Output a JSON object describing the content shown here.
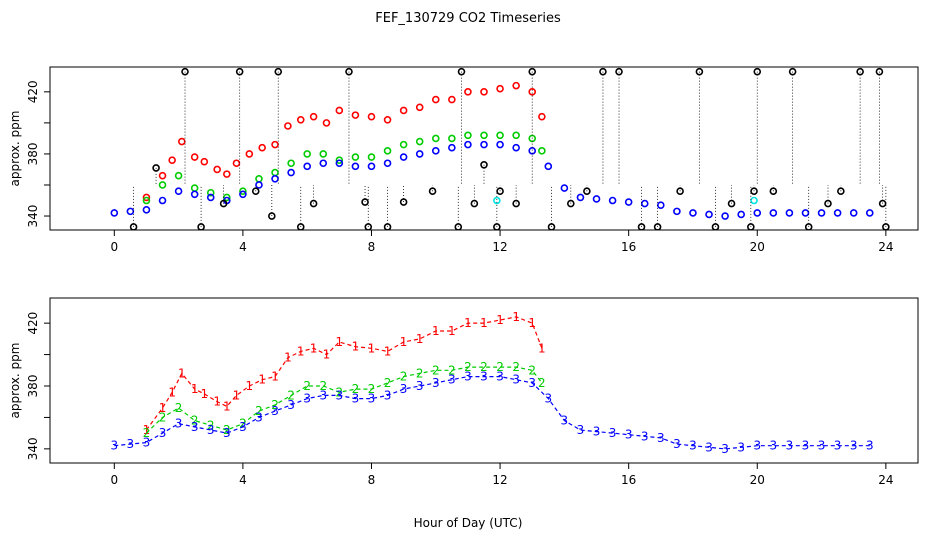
{
  "figure": {
    "title": "FEF_130729  CO2 Timeseries",
    "xlabel": "Hour of Day (UTC)"
  },
  "chart_data": [
    {
      "type": "scatter",
      "ylabel": "approx. ppm",
      "xlim": [
        -2,
        25
      ],
      "ylim": [
        331,
        436
      ],
      "x_ticks": [
        "0",
        "4",
        "8",
        "12",
        "16",
        "20",
        "24"
      ],
      "y_ticks": [
        "340",
        "380",
        "420"
      ],
      "series": [
        {
          "key": "red",
          "color": "#ff0000",
          "points": [
            [
              1.0,
              352
            ],
            [
              1.5,
              366
            ],
            [
              1.8,
              376
            ],
            [
              2.1,
              388
            ],
            [
              2.5,
              378
            ],
            [
              2.8,
              375
            ],
            [
              3.2,
              370
            ],
            [
              3.5,
              367
            ],
            [
              3.8,
              374
            ],
            [
              4.2,
              380
            ],
            [
              4.6,
              384
            ],
            [
              5.0,
              386
            ],
            [
              5.4,
              398
            ],
            [
              5.8,
              402
            ],
            [
              6.2,
              404
            ],
            [
              6.6,
              400
            ],
            [
              7.0,
              408
            ],
            [
              7.5,
              405
            ],
            [
              8.0,
              404
            ],
            [
              8.5,
              402
            ],
            [
              9.0,
              408
            ],
            [
              9.5,
              410
            ],
            [
              10.0,
              415
            ],
            [
              10.5,
              415
            ],
            [
              11.0,
              420
            ],
            [
              11.5,
              420
            ],
            [
              12.0,
              422
            ],
            [
              12.5,
              424
            ],
            [
              13.0,
              420
            ],
            [
              13.3,
              404
            ]
          ]
        },
        {
          "key": "green",
          "color": "#00cc00",
          "points": [
            [
              1.0,
              350
            ],
            [
              1.5,
              360
            ],
            [
              2.0,
              366
            ],
            [
              2.5,
              358
            ],
            [
              3.0,
              355
            ],
            [
              3.5,
              352
            ],
            [
              4.0,
              356
            ],
            [
              4.5,
              364
            ],
            [
              5.0,
              368
            ],
            [
              5.5,
              374
            ],
            [
              6.0,
              380
            ],
            [
              6.5,
              380
            ],
            [
              7.0,
              376
            ],
            [
              7.5,
              378
            ],
            [
              8.0,
              378
            ],
            [
              8.5,
              382
            ],
            [
              9.0,
              386
            ],
            [
              9.5,
              388
            ],
            [
              10.0,
              390
            ],
            [
              10.5,
              390
            ],
            [
              11.0,
              392
            ],
            [
              11.5,
              392
            ],
            [
              12.0,
              392
            ],
            [
              12.5,
              392
            ],
            [
              13.0,
              390
            ],
            [
              13.3,
              382
            ]
          ]
        },
        {
          "key": "blue",
          "color": "#0000ff",
          "points": [
            [
              0.0,
              342
            ],
            [
              0.5,
              343
            ],
            [
              1.0,
              344
            ],
            [
              1.5,
              350
            ],
            [
              2.0,
              356
            ],
            [
              2.5,
              354
            ],
            [
              3.0,
              352
            ],
            [
              3.5,
              350
            ],
            [
              4.0,
              354
            ],
            [
              4.5,
              360
            ],
            [
              5.0,
              364
            ],
            [
              5.5,
              368
            ],
            [
              6.0,
              372
            ],
            [
              6.5,
              374
            ],
            [
              7.0,
              374
            ],
            [
              7.5,
              372
            ],
            [
              8.0,
              372
            ],
            [
              8.5,
              374
            ],
            [
              9.0,
              378
            ],
            [
              9.5,
              380
            ],
            [
              10.0,
              382
            ],
            [
              10.5,
              384
            ],
            [
              11.0,
              386
            ],
            [
              11.5,
              386
            ],
            [
              12.0,
              386
            ],
            [
              12.5,
              384
            ],
            [
              13.0,
              382
            ],
            [
              13.5,
              372
            ],
            [
              14.0,
              358
            ],
            [
              14.5,
              352
            ],
            [
              15.0,
              351
            ],
            [
              15.5,
              350
            ],
            [
              16.0,
              349
            ],
            [
              16.5,
              348
            ],
            [
              17.0,
              347
            ],
            [
              17.5,
              343
            ],
            [
              18.0,
              342
            ],
            [
              18.5,
              341
            ],
            [
              19.0,
              340
            ],
            [
              19.5,
              341
            ],
            [
              20.0,
              342
            ],
            [
              20.5,
              342
            ],
            [
              21.0,
              342
            ],
            [
              21.5,
              342
            ],
            [
              22.0,
              342
            ],
            [
              22.5,
              342
            ],
            [
              23.0,
              342
            ],
            [
              23.5,
              342
            ]
          ]
        },
        {
          "key": "cyan",
          "color": "#00e5e5",
          "points": [
            [
              11.9,
              350
            ],
            [
              19.9,
              350
            ]
          ]
        },
        {
          "key": "black",
          "color": "#000000",
          "points": [
            [
              0.6,
              333
            ],
            [
              1.3,
              371
            ],
            [
              2.2,
              433
            ],
            [
              2.7,
              333
            ],
            [
              3.4,
              348
            ],
            [
              3.9,
              433
            ],
            [
              4.4,
              356
            ],
            [
              4.9,
              340
            ],
            [
              5.1,
              433
            ],
            [
              5.8,
              333
            ],
            [
              6.2,
              348
            ],
            [
              7.3,
              433
            ],
            [
              7.8,
              349
            ],
            [
              7.9,
              333
            ],
            [
              8.5,
              333
            ],
            [
              9.0,
              349
            ],
            [
              9.9,
              356
            ],
            [
              10.7,
              333
            ],
            [
              10.8,
              433
            ],
            [
              11.2,
              348
            ],
            [
              11.5,
              373
            ],
            [
              11.9,
              333
            ],
            [
              12.0,
              356
            ],
            [
              12.5,
              348
            ],
            [
              13.0,
              433
            ],
            [
              13.6,
              333
            ],
            [
              14.2,
              348
            ],
            [
              14.7,
              356
            ],
            [
              15.2,
              433
            ],
            [
              15.7,
              433
            ],
            [
              16.4,
              333
            ],
            [
              16.9,
              333
            ],
            [
              17.6,
              356
            ],
            [
              18.2,
              433
            ],
            [
              18.7,
              333
            ],
            [
              19.2,
              348
            ],
            [
              19.8,
              333
            ],
            [
              19.9,
              356
            ],
            [
              20.0,
              433
            ],
            [
              20.5,
              356
            ],
            [
              21.1,
              433
            ],
            [
              21.6,
              333
            ],
            [
              22.2,
              348
            ],
            [
              22.6,
              356
            ],
            [
              23.2,
              433
            ],
            [
              23.8,
              433
            ],
            [
              23.9,
              348
            ],
            [
              24.0,
              333
            ]
          ]
        }
      ]
    },
    {
      "type": "line",
      "ylabel": "approx. ppm",
      "xlim": [
        -2,
        25
      ],
      "ylim": [
        331,
        436
      ],
      "x_ticks": [
        "0",
        "4",
        "8",
        "12",
        "16",
        "20",
        "24"
      ],
      "y_ticks": [
        "340",
        "380",
        "420"
      ],
      "series": [
        {
          "key": "red",
          "marker": "1",
          "color": "#ff0000",
          "points": [
            [
              1.0,
              352
            ],
            [
              1.5,
              366
            ],
            [
              1.8,
              376
            ],
            [
              2.1,
              388
            ],
            [
              2.5,
              378
            ],
            [
              2.8,
              375
            ],
            [
              3.2,
              370
            ],
            [
              3.5,
              367
            ],
            [
              3.8,
              374
            ],
            [
              4.2,
              380
            ],
            [
              4.6,
              384
            ],
            [
              5.0,
              386
            ],
            [
              5.4,
              398
            ],
            [
              5.8,
              402
            ],
            [
              6.2,
              404
            ],
            [
              6.6,
              400
            ],
            [
              7.0,
              408
            ],
            [
              7.5,
              405
            ],
            [
              8.0,
              404
            ],
            [
              8.5,
              402
            ],
            [
              9.0,
              408
            ],
            [
              9.5,
              410
            ],
            [
              10.0,
              415
            ],
            [
              10.5,
              415
            ],
            [
              11.0,
              420
            ],
            [
              11.5,
              420
            ],
            [
              12.0,
              422
            ],
            [
              12.5,
              424
            ],
            [
              13.0,
              420
            ],
            [
              13.3,
              404
            ]
          ]
        },
        {
          "key": "green",
          "marker": "2",
          "color": "#00cc00",
          "points": [
            [
              1.0,
              350
            ],
            [
              1.5,
              360
            ],
            [
              2.0,
              366
            ],
            [
              2.5,
              358
            ],
            [
              3.0,
              355
            ],
            [
              3.5,
              352
            ],
            [
              4.0,
              356
            ],
            [
              4.5,
              364
            ],
            [
              5.0,
              368
            ],
            [
              5.5,
              374
            ],
            [
              6.0,
              380
            ],
            [
              6.5,
              380
            ],
            [
              7.0,
              376
            ],
            [
              7.5,
              378
            ],
            [
              8.0,
              378
            ],
            [
              8.5,
              382
            ],
            [
              9.0,
              386
            ],
            [
              9.5,
              388
            ],
            [
              10.0,
              390
            ],
            [
              10.5,
              390
            ],
            [
              11.0,
              392
            ],
            [
              11.5,
              392
            ],
            [
              12.0,
              392
            ],
            [
              12.5,
              392
            ],
            [
              13.0,
              390
            ],
            [
              13.3,
              382
            ]
          ]
        },
        {
          "key": "blue",
          "marker": "3",
          "color": "#0000ff",
          "points": [
            [
              0.0,
              342
            ],
            [
              0.5,
              343
            ],
            [
              1.0,
              344
            ],
            [
              1.5,
              350
            ],
            [
              2.0,
              356
            ],
            [
              2.5,
              354
            ],
            [
              3.0,
              352
            ],
            [
              3.5,
              350
            ],
            [
              4.0,
              354
            ],
            [
              4.5,
              360
            ],
            [
              5.0,
              364
            ],
            [
              5.5,
              368
            ],
            [
              6.0,
              372
            ],
            [
              6.5,
              374
            ],
            [
              7.0,
              374
            ],
            [
              7.5,
              372
            ],
            [
              8.0,
              372
            ],
            [
              8.5,
              374
            ],
            [
              9.0,
              378
            ],
            [
              9.5,
              380
            ],
            [
              10.0,
              382
            ],
            [
              10.5,
              384
            ],
            [
              11.0,
              386
            ],
            [
              11.5,
              386
            ],
            [
              12.0,
              386
            ],
            [
              12.5,
              384
            ],
            [
              13.0,
              382
            ],
            [
              13.5,
              372
            ],
            [
              14.0,
              358
            ],
            [
              14.5,
              352
            ],
            [
              15.0,
              351
            ],
            [
              15.5,
              350
            ],
            [
              16.0,
              349
            ],
            [
              16.5,
              348
            ],
            [
              17.0,
              347
            ],
            [
              17.5,
              343
            ],
            [
              18.0,
              342
            ],
            [
              18.5,
              341
            ],
            [
              19.0,
              340
            ],
            [
              19.5,
              341
            ],
            [
              20.0,
              342
            ],
            [
              20.5,
              342
            ],
            [
              21.0,
              342
            ],
            [
              21.5,
              342
            ],
            [
              22.0,
              342
            ],
            [
              22.5,
              342
            ],
            [
              23.0,
              342
            ],
            [
              23.5,
              342
            ]
          ]
        }
      ]
    }
  ]
}
